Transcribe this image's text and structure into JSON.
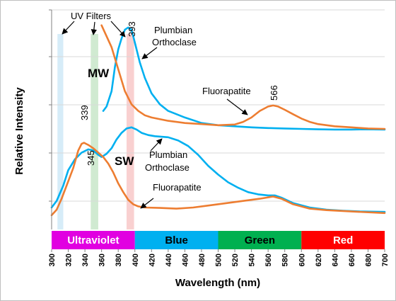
{
  "chart_data": {
    "type": "line",
    "xlabel": "Wavelength (nm)",
    "ylabel": "Relative Intensity",
    "xlim": [
      300,
      700
    ],
    "x_ticks": [
      300,
      320,
      340,
      360,
      380,
      400,
      420,
      440,
      460,
      480,
      500,
      520,
      540,
      560,
      580,
      600,
      620,
      640,
      660,
      680,
      700
    ],
    "grid": "horizontal",
    "uv_filters": {
      "label": "UV Filters",
      "bands": [
        {
          "from": 307,
          "to": 314,
          "color": "#cfe9f7"
        },
        {
          "from": 347,
          "to": 356,
          "color": "#c8e6c9"
        },
        {
          "from": 390,
          "to": 399,
          "color": "#f8c8c8"
        }
      ]
    },
    "color_bands": [
      {
        "label": "Ultraviolet",
        "from": 300,
        "to": 400,
        "color": "#e100e1"
      },
      {
        "label": "Blue",
        "from": 400,
        "to": 500,
        "color": "#00b0f0"
      },
      {
        "label": "Green",
        "from": 500,
        "to": 600,
        "color": "#00b050"
      },
      {
        "label": "Red",
        "from": 600,
        "to": 700,
        "color": "#ff0000"
      }
    ],
    "series": [
      {
        "color": "#00b0f0",
        "points": [
          [
            362,
            0.54
          ],
          [
            366,
            0.56
          ],
          [
            372,
            0.63
          ],
          [
            376,
            0.74
          ],
          [
            380,
            0.82
          ],
          [
            384,
            0.87
          ],
          [
            388,
            0.91
          ],
          [
            392,
            0.92
          ],
          [
            396,
            0.91
          ],
          [
            400,
            0.85
          ],
          [
            406,
            0.76
          ],
          [
            412,
            0.69
          ],
          [
            420,
            0.62
          ],
          [
            430,
            0.57
          ],
          [
            440,
            0.54
          ],
          [
            460,
            0.51
          ],
          [
            480,
            0.485
          ],
          [
            500,
            0.475
          ],
          [
            520,
            0.47
          ],
          [
            540,
            0.465
          ],
          [
            560,
            0.462
          ],
          [
            580,
            0.46
          ],
          [
            600,
            0.458
          ],
          [
            620,
            0.456
          ],
          [
            640,
            0.455
          ],
          [
            660,
            0.455
          ],
          [
            680,
            0.456
          ],
          [
            700,
            0.455
          ]
        ]
      },
      {
        "color": "#ed7d31",
        "points": [
          [
            360,
            0.93
          ],
          [
            366,
            0.88
          ],
          [
            372,
            0.83
          ],
          [
            380,
            0.73
          ],
          [
            388,
            0.63
          ],
          [
            396,
            0.57
          ],
          [
            404,
            0.54
          ],
          [
            412,
            0.52
          ],
          [
            420,
            0.51
          ],
          [
            440,
            0.495
          ],
          [
            460,
            0.485
          ],
          [
            480,
            0.48
          ],
          [
            500,
            0.475
          ],
          [
            520,
            0.478
          ],
          [
            530,
            0.49
          ],
          [
            540,
            0.51
          ],
          [
            550,
            0.54
          ],
          [
            560,
            0.56
          ],
          [
            566,
            0.565
          ],
          [
            572,
            0.56
          ],
          [
            580,
            0.545
          ],
          [
            590,
            0.525
          ],
          [
            600,
            0.505
          ],
          [
            610,
            0.49
          ],
          [
            620,
            0.48
          ],
          [
            640,
            0.47
          ],
          [
            660,
            0.465
          ],
          [
            680,
            0.46
          ],
          [
            700,
            0.458
          ]
        ]
      },
      {
        "color": "#00b0f0",
        "points": [
          [
            300,
            0.1
          ],
          [
            306,
            0.13
          ],
          [
            314,
            0.2
          ],
          [
            320,
            0.27
          ],
          [
            328,
            0.32
          ],
          [
            336,
            0.35
          ],
          [
            344,
            0.365
          ],
          [
            350,
            0.36
          ],
          [
            356,
            0.34
          ],
          [
            360,
            0.33
          ],
          [
            366,
            0.345
          ],
          [
            372,
            0.37
          ],
          [
            378,
            0.41
          ],
          [
            384,
            0.44
          ],
          [
            390,
            0.46
          ],
          [
            396,
            0.465
          ],
          [
            402,
            0.455
          ],
          [
            408,
            0.44
          ],
          [
            416,
            0.43
          ],
          [
            424,
            0.425
          ],
          [
            440,
            0.42
          ],
          [
            452,
            0.405
          ],
          [
            464,
            0.38
          ],
          [
            476,
            0.34
          ],
          [
            488,
            0.29
          ],
          [
            500,
            0.25
          ],
          [
            512,
            0.215
          ],
          [
            524,
            0.19
          ],
          [
            536,
            0.17
          ],
          [
            548,
            0.16
          ],
          [
            560,
            0.155
          ],
          [
            568,
            0.155
          ],
          [
            576,
            0.145
          ],
          [
            590,
            0.12
          ],
          [
            610,
            0.1
          ],
          [
            630,
            0.09
          ],
          [
            650,
            0.085
          ],
          [
            670,
            0.082
          ],
          [
            700,
            0.08
          ]
        ]
      },
      {
        "color": "#ed7d31",
        "points": [
          [
            300,
            0.065
          ],
          [
            306,
            0.09
          ],
          [
            312,
            0.14
          ],
          [
            318,
            0.2
          ],
          [
            326,
            0.28
          ],
          [
            332,
            0.36
          ],
          [
            336,
            0.39
          ],
          [
            339,
            0.395
          ],
          [
            344,
            0.385
          ],
          [
            350,
            0.37
          ],
          [
            356,
            0.35
          ],
          [
            362,
            0.33
          ],
          [
            368,
            0.3
          ],
          [
            374,
            0.26
          ],
          [
            380,
            0.21
          ],
          [
            386,
            0.17
          ],
          [
            392,
            0.135
          ],
          [
            398,
            0.115
          ],
          [
            404,
            0.105
          ],
          [
            412,
            0.1
          ],
          [
            430,
            0.098
          ],
          [
            450,
            0.095
          ],
          [
            470,
            0.1
          ],
          [
            490,
            0.11
          ],
          [
            510,
            0.12
          ],
          [
            530,
            0.13
          ],
          [
            550,
            0.14
          ],
          [
            566,
            0.15
          ],
          [
            576,
            0.14
          ],
          [
            590,
            0.115
          ],
          [
            610,
            0.095
          ],
          [
            630,
            0.088
          ],
          [
            660,
            0.082
          ],
          [
            700,
            0.075
          ]
        ]
      }
    ],
    "annotations": {
      "peak_393": "393",
      "peak_339": "339",
      "peak_345": "345",
      "peak_566": "566",
      "mw": "MW",
      "sw": "SW",
      "plumbian_top_1": "Plumbian",
      "plumbian_top_2": "Orthoclase",
      "plumbian_bot_1": "Plumbian",
      "plumbian_bot_2": "Orthoclase",
      "fluorapatite_top": "Fluorapatite",
      "fluorapatite_bot": "Fluorapatite"
    }
  }
}
